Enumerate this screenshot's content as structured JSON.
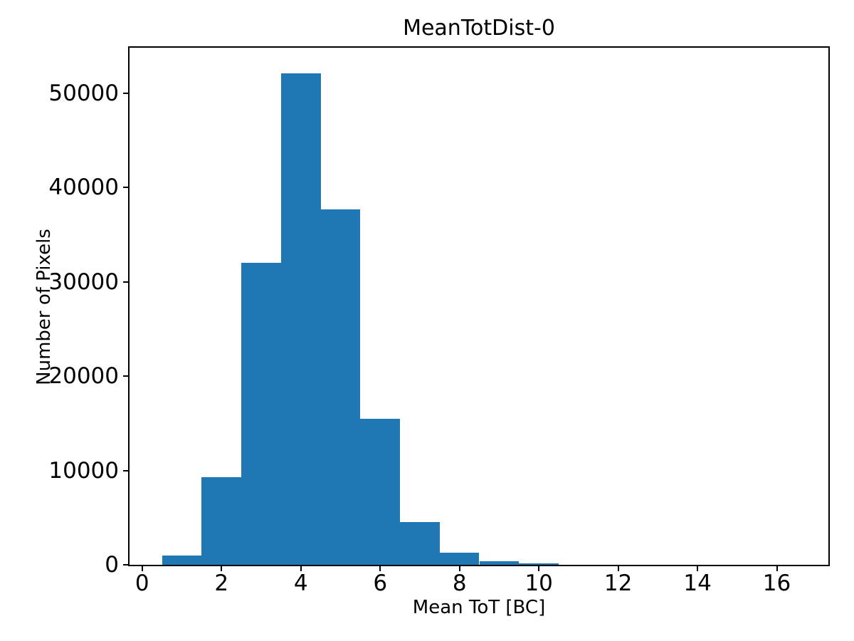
{
  "chart_data": {
    "type": "bar",
    "subtype": "histogram",
    "title": "MeanTotDist-0",
    "xlabel": "Mean ToT [BC]",
    "ylabel": "Number of Pixels",
    "bin_edges": [
      0.5,
      1.5,
      2.5,
      3.5,
      4.5,
      5.5,
      6.5,
      7.5,
      8.5,
      9.5,
      10.5,
      11.5,
      12.5,
      13.5,
      14.5,
      15.5,
      16.5
    ],
    "counts": [
      1000,
      9300,
      32000,
      52100,
      37700,
      15500,
      4500,
      1300,
      400,
      150,
      0,
      0,
      0,
      0,
      0,
      0
    ],
    "x_ticks": [
      0,
      2,
      4,
      6,
      8,
      10,
      12,
      14,
      16
    ],
    "y_ticks": [
      0,
      10000,
      20000,
      30000,
      40000,
      50000
    ],
    "xlim": [
      -0.32,
      17.3
    ],
    "ylim": [
      0,
      54800
    ],
    "grid": false,
    "legend": null,
    "bar_color": "#1f77b4",
    "axis_color": "#000000",
    "background_color": "#ffffff"
  }
}
